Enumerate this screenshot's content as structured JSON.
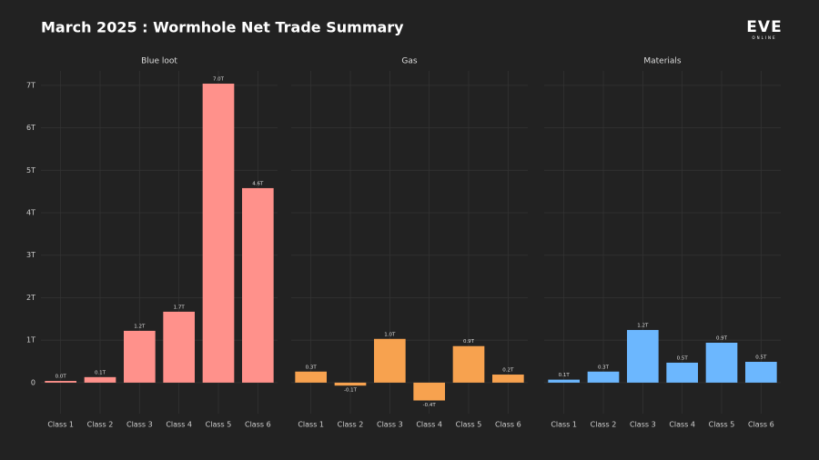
{
  "title": "March 2025 : Wormhole Net Trade Summary",
  "logo": {
    "text": "EVE",
    "subtext": "ONLINE"
  },
  "chart_data": [
    {
      "type": "bar",
      "title": "Blue loot",
      "color": "#ff918b",
      "categories": [
        "Class 1",
        "Class 2",
        "Class 3",
        "Class 4",
        "Class 5",
        "Class 6"
      ],
      "values": [
        0.04,
        0.13,
        1.22,
        1.67,
        7.04,
        4.58
      ],
      "value_labels": [
        "0.0T",
        "0.1T",
        "1.2T",
        "1.7T",
        "7.0T",
        "4.6T"
      ],
      "ylim": [
        -0.73,
        7.34
      ],
      "yticks": [
        0,
        {
          "value": 1,
          "label": "1T"
        },
        {
          "value": 2,
          "label": "2T"
        },
        {
          "value": 3,
          "label": "3T"
        },
        {
          "value": 4,
          "label": "4T"
        },
        {
          "value": 5,
          "label": "5T"
        },
        {
          "value": 6,
          "label": "6T"
        },
        {
          "value": 7,
          "label": "7T"
        }
      ],
      "grid": true
    },
    {
      "type": "bar",
      "title": "Gas",
      "color": "#f7a24f",
      "categories": [
        "Class 1",
        "Class 2",
        "Class 3",
        "Class 4",
        "Class 5",
        "Class 6"
      ],
      "values": [
        0.26,
        -0.07,
        1.03,
        -0.42,
        0.86,
        0.19
      ],
      "value_labels": [
        "0.3T",
        "-0.1T",
        "1.0T",
        "-0.4T",
        "0.9T",
        "0.2T"
      ],
      "grid": true
    },
    {
      "type": "bar",
      "title": "Materials",
      "color": "#6cb7fe",
      "categories": [
        "Class 1",
        "Class 2",
        "Class 3",
        "Class 4",
        "Class 5",
        "Class 6"
      ],
      "values": [
        0.07,
        0.26,
        1.24,
        0.47,
        0.94,
        0.49
      ],
      "value_labels": [
        "0.1T",
        "0.3T",
        "1.2T",
        "0.5T",
        "0.9T",
        "0.5T"
      ],
      "grid": true
    }
  ]
}
